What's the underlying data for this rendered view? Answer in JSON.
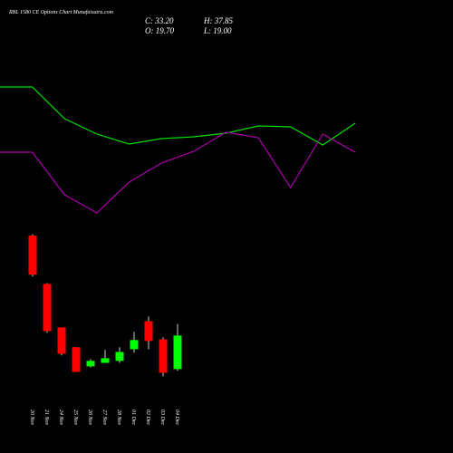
{
  "chart_data": [
    {
      "type": "candlestick",
      "title": "RBL 1580 CE Options Chart Munafaisutra.com",
      "ohlc_text": [
        "C: 33.20",
        "H: 37.85",
        "O: 19.70",
        "L: 19.00"
      ],
      "categories": [
        "20 Nov",
        "21 Nov",
        "24 Nov",
        "25 Nov",
        "26 Nov",
        "27 Nov",
        "28 Nov",
        "01 Dec",
        "02 Dec",
        "03 Dec",
        "04 Dec"
      ],
      "open": [
        73.4,
        54.0,
        36.5,
        28.5,
        20.8,
        22.2,
        23.0,
        27.7,
        39.0,
        31.7,
        19.7
      ],
      "high": [
        74.0,
        54.3,
        36.5,
        28.5,
        23.7,
        27.4,
        28.5,
        34.7,
        40.9,
        32.5,
        37.85
      ],
      "low": [
        57.0,
        34.3,
        25.2,
        18.6,
        20.4,
        22.2,
        22.2,
        26.3,
        27.7,
        16.8,
        19.0
      ],
      "close": [
        57.7,
        35.0,
        25.9,
        18.6,
        23.0,
        24.1,
        26.6,
        31.4,
        31.0,
        18.2,
        33.2
      ],
      "up_color": "#00ff00",
      "down_color": "#ff0000",
      "ylim": [
        10,
        80
      ]
    },
    {
      "type": "line",
      "series": [
        {
          "color": "#00dd00",
          "values": [
            82,
            82,
            64.5,
            56,
            50.5,
            53.5,
            54.5,
            56.5,
            60.5,
            60,
            50,
            62
          ]
        },
        {
          "color": "#aa00aa",
          "values": [
            46,
            46,
            22.5,
            12.5,
            29.5,
            40,
            46.5,
            57,
            54,
            26.5,
            56,
            46
          ]
        }
      ],
      "ylim": [
        0,
        100
      ]
    }
  ]
}
